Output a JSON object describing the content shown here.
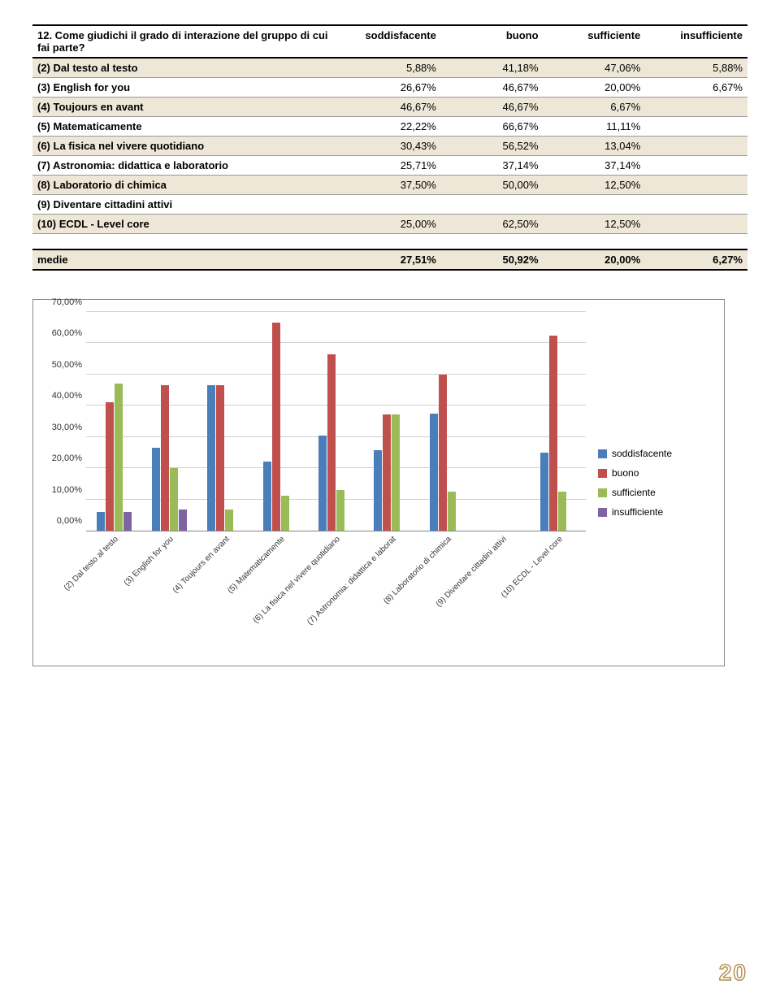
{
  "question": "12. Come giudichi il grado di interazione del gruppo di cui fai parte?",
  "columns": [
    "soddisfacente",
    "buono",
    "sufficiente",
    "insufficiente"
  ],
  "rows": [
    {
      "label": "(2) Dal testo al testo",
      "vals": [
        "5,88%",
        "41,18%",
        "47,06%",
        "5,88%"
      ],
      "nums": [
        5.88,
        41.18,
        47.06,
        5.88
      ]
    },
    {
      "label": "(3) English for you",
      "vals": [
        "26,67%",
        "46,67%",
        "20,00%",
        "6,67%"
      ],
      "nums": [
        26.67,
        46.67,
        20.0,
        6.67
      ]
    },
    {
      "label": "(4) Toujours en avant",
      "vals": [
        "46,67%",
        "46,67%",
        "6,67%",
        ""
      ],
      "nums": [
        46.67,
        46.67,
        6.67,
        0
      ]
    },
    {
      "label": "(5) Matematicamente",
      "vals": [
        "22,22%",
        "66,67%",
        "11,11%",
        ""
      ],
      "nums": [
        22.22,
        66.67,
        11.11,
        0
      ]
    },
    {
      "label": "(6) La fisica nel vivere quotidiano",
      "vals": [
        "30,43%",
        "56,52%",
        "13,04%",
        ""
      ],
      "nums": [
        30.43,
        56.52,
        13.04,
        0
      ]
    },
    {
      "label": "(7) Astronomia: didattica e laboratorio",
      "vals": [
        "25,71%",
        "37,14%",
        "37,14%",
        ""
      ],
      "nums": [
        25.71,
        37.14,
        37.14,
        0
      ]
    },
    {
      "label": "(8) Laboratorio di chimica",
      "vals": [
        "37,50%",
        "50,00%",
        "12,50%",
        ""
      ],
      "nums": [
        37.5,
        50.0,
        12.5,
        0
      ]
    },
    {
      "label": "(9) Diventare cittadini attivi",
      "vals": [
        "",
        "",
        "",
        ""
      ],
      "nums": [
        0,
        0,
        0,
        0
      ]
    },
    {
      "label": "(10) ECDL - Level core",
      "vals": [
        "25,00%",
        "62,50%",
        "12,50%",
        ""
      ],
      "nums": [
        25.0,
        62.5,
        12.5,
        0
      ]
    }
  ],
  "medie": {
    "label": "medie",
    "vals": [
      "27,51%",
      "50,92%",
      "20,00%",
      "6,27%"
    ]
  },
  "chart": {
    "ymax": 70,
    "ystep": 10,
    "yticks": [
      "0,00%",
      "10,00%",
      "20,00%",
      "30,00%",
      "40,00%",
      "50,00%",
      "60,00%",
      "70,00%"
    ],
    "series_colors": [
      "#4a7ebb",
      "#c0504d",
      "#9bbb59",
      "#8064a2"
    ],
    "series_labels": [
      "soddisfacente",
      "buono",
      "sufficiente",
      "insufficiente"
    ],
    "xlabels": [
      "(2) Dal testo al testo",
      "(3) English for you",
      "(4) Toujours en avant",
      "(5) Matematicamente",
      "(6) La fisica nel vivere quotidiano",
      "(7) Astronomia: didattica e laborat",
      "(8) Laboratorio di chimica",
      "(9) Diventare cittadini attivi",
      "(10) ECDL - Level core"
    ]
  },
  "shade_color": "#eee6d6",
  "page_number": "20"
}
